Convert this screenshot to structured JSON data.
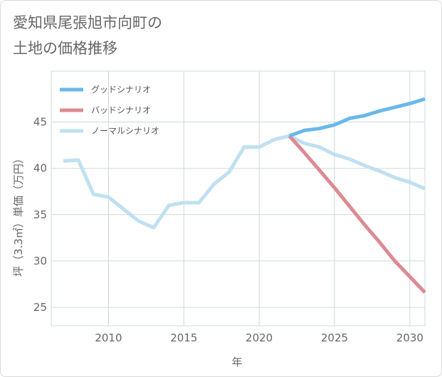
{
  "chart_data": {
    "type": "line",
    "title": "愛知県尾張旭市向町の\n土地の価格推移",
    "xlabel": "年",
    "ylabel": "坪（3.3㎡）単価（万円）",
    "xlim": [
      2006.2,
      2031
    ],
    "ylim": [
      23,
      50.5
    ],
    "xticks": [
      2010,
      2015,
      2020,
      2025,
      2030
    ],
    "yticks": [
      25,
      30,
      35,
      40,
      45
    ],
    "grid": true,
    "legend_position": "top-left",
    "series": [
      {
        "name": "グッドシナリオ",
        "color": "#6ab8ea",
        "x": [
          2022,
          2023,
          2024,
          2025,
          2026,
          2027,
          2028,
          2029,
          2030,
          2031
        ],
        "y": [
          43.5,
          44.1,
          44.3,
          44.7,
          45.4,
          45.7,
          46.2,
          46.6,
          47.0,
          47.5
        ]
      },
      {
        "name": "バッドシナリオ",
        "color": "#dd8a92",
        "x": [
          2022,
          2023,
          2024,
          2025,
          2026,
          2027,
          2028,
          2029,
          2030,
          2031
        ],
        "y": [
          43.5,
          41.7,
          39.8,
          37.9,
          35.9,
          33.9,
          32.0,
          30.0,
          28.3,
          26.6
        ]
      },
      {
        "name": "ノーマルシナリオ",
        "color": "#bfe0f0",
        "x": [
          2007,
          2008,
          2009,
          2010,
          2011,
          2012,
          2013,
          2014,
          2015,
          2016,
          2017,
          2018,
          2019,
          2020,
          2021,
          2022,
          2023,
          2024,
          2025,
          2026,
          2027,
          2028,
          2029,
          2030,
          2031
        ],
        "y": [
          40.8,
          40.9,
          37.2,
          36.9,
          35.6,
          34.3,
          33.6,
          36.0,
          36.3,
          36.3,
          38.3,
          39.6,
          42.3,
          42.3,
          43.1,
          43.5,
          42.7,
          42.3,
          41.5,
          41.0,
          40.3,
          39.7,
          39.0,
          38.5,
          37.8
        ]
      }
    ]
  }
}
